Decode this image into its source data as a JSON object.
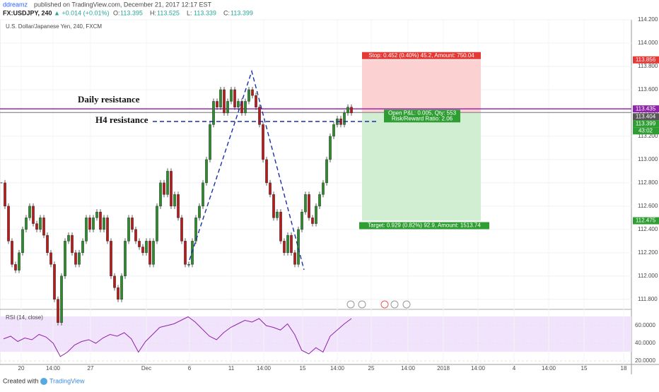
{
  "header": {
    "author": "ddreamz",
    "published": "published on TradingView.com, December 21, 2017 12:17 EST",
    "symbol": "FX:USDJPY, 240",
    "change": "▲ +0.014 (+0.01%)",
    "ohlc": [
      {
        "key": "O:",
        "val": "113.395"
      },
      {
        "key": "H:",
        "val": "113.525"
      },
      {
        "key": "L:",
        "val": "113.339"
      },
      {
        "key": "C:",
        "val": "113.399"
      }
    ]
  },
  "chart_data": {
    "type": "candlestick",
    "title": "U.S. Dollar/Japanese Yen, 240, FXCM",
    "closes": [
      112.8,
      112.6,
      112.3,
      112.1,
      112.05,
      112.2,
      112.4,
      112.5,
      112.6,
      112.45,
      112.4,
      112.5,
      112.35,
      112.2,
      112.1,
      111.8,
      111.6,
      112.0,
      112.3,
      112.35,
      112.2,
      112.1,
      112.2,
      112.3,
      112.5,
      112.4,
      112.5,
      112.55,
      112.4,
      112.5,
      112.3,
      112.0,
      111.9,
      111.8,
      112.0,
      112.3,
      112.5,
      112.4,
      112.3,
      112.25,
      112.2,
      112.3,
      112.1,
      112.3,
      112.6,
      112.8,
      112.7,
      112.9,
      112.6,
      112.7,
      112.5,
      112.3,
      112.1,
      112.1,
      112.3,
      112.5,
      112.6,
      112.8,
      113.0,
      113.3,
      113.5,
      113.45,
      113.6,
      113.4,
      113.5,
      113.6,
      113.45,
      113.5,
      113.4,
      113.5,
      113.6,
      113.55,
      113.45,
      113.3,
      113.0,
      112.8,
      112.7,
      112.5,
      112.55,
      112.3,
      112.2,
      112.35,
      112.2,
      112.1,
      112.4,
      112.55,
      112.7,
      112.5,
      112.45,
      112.6,
      112.7,
      112.8,
      113.0,
      113.2,
      113.3,
      113.35,
      113.3,
      113.4,
      113.45,
      113.4
    ],
    "ylim": [
      111.72,
      114.2
    ],
    "yticks": [
      {
        "value": 114.2,
        "label": "114.200"
      },
      {
        "value": 114.0,
        "label": "114.000"
      },
      {
        "value": 113.8,
        "label": "113.800"
      },
      {
        "value": 113.6,
        "label": "113.600"
      },
      {
        "value": 113.4,
        "label": "113.400"
      },
      {
        "value": 113.2,
        "label": "113.200"
      },
      {
        "value": 113.0,
        "label": "113.000"
      },
      {
        "value": 112.8,
        "label": "112.800"
      },
      {
        "value": 112.6,
        "label": "112.600"
      },
      {
        "value": 112.4,
        "label": "112.400"
      },
      {
        "value": 112.2,
        "label": "112.200"
      },
      {
        "value": 112.0,
        "label": "112.000"
      },
      {
        "value": 111.8,
        "label": "111.800"
      }
    ],
    "stop_price": 113.856,
    "entry_price": 113.404,
    "target_price": 112.475,
    "daily_resistance_price": 113.435,
    "last_price": 113.399,
    "countdown": "43:02",
    "annotations": {
      "daily": "Daily resistance",
      "h4": "H4 resistance",
      "stop": "Stop: 0.452 (0.40%) 45.2, Amount: 750.04",
      "pnl": "Open P&L: 0.005, Qty: 553",
      "rr": "Risk/Reward Ratio: 2.06",
      "target": "Target: 0.929 (0.82%) 92.9, Amount: 1513.74"
    },
    "x_labels": [
      "20",
      "14:00",
      "27",
      "Dec",
      "6",
      "11",
      "14:00",
      "15",
      "14:00",
      "25",
      "14:00",
      "2018",
      "14:00",
      "4",
      "14:00",
      "15",
      "18"
    ],
    "rsi": {
      "title": "RSI (14, close)",
      "values": [
        45,
        48,
        42,
        46,
        44,
        50,
        47,
        40,
        25,
        30,
        38,
        42,
        44,
        40,
        46,
        50,
        48,
        52,
        45,
        30,
        42,
        50,
        58,
        60,
        62,
        66,
        70,
        64,
        56,
        48,
        44,
        52,
        58,
        62,
        66,
        64,
        68,
        60,
        58,
        55,
        62,
        50,
        32,
        28,
        35,
        30,
        48,
        55,
        62,
        68
      ],
      "ylim": [
        16,
        76.8
      ],
      "yticks": [
        {
          "value": 60,
          "label": "60.0000"
        },
        {
          "value": 40,
          "label": "40.0000"
        },
        {
          "value": 20,
          "label": "20.0000"
        }
      ]
    }
  },
  "footer": {
    "created": "Created with",
    "brand": "TradingView"
  }
}
